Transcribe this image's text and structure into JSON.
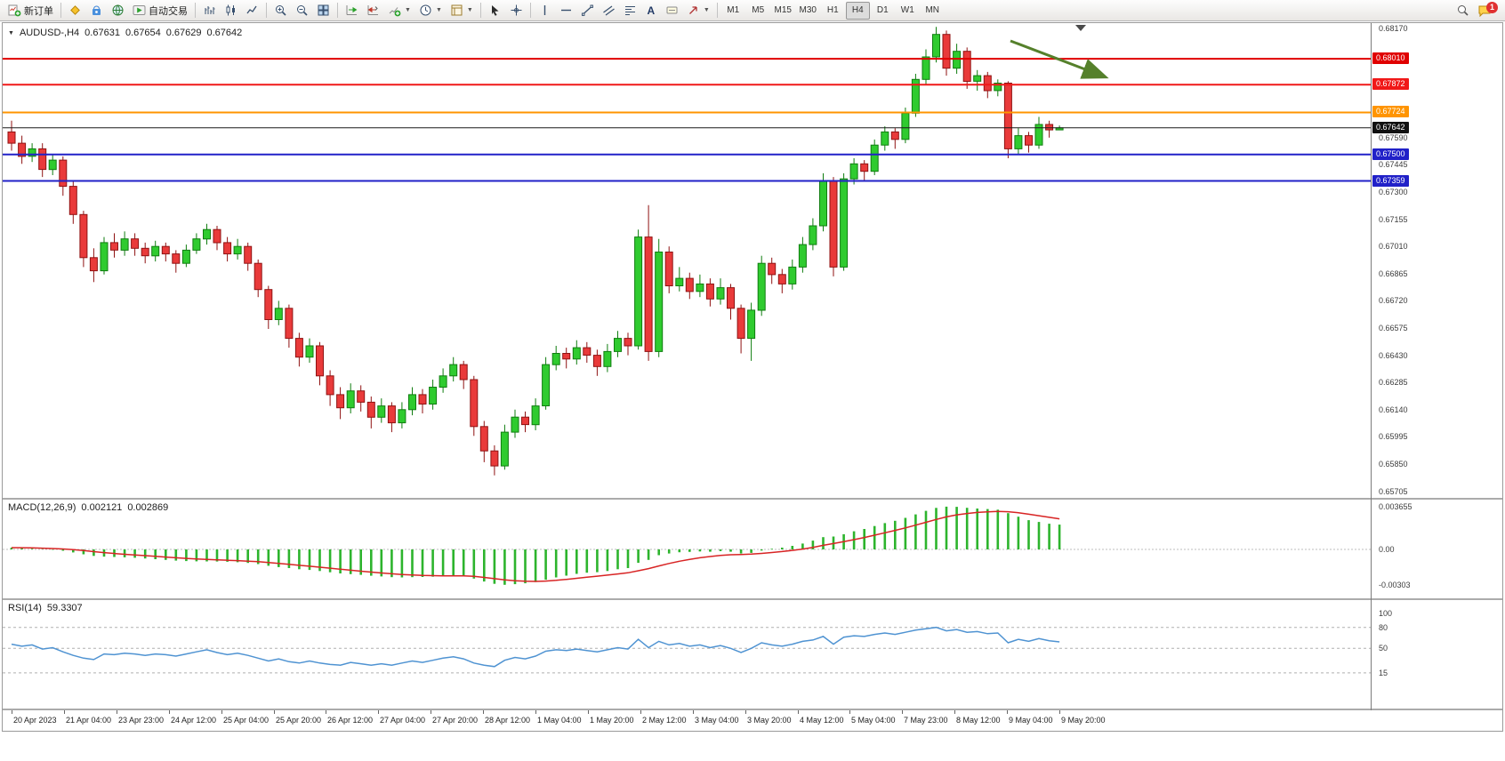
{
  "toolbar": {
    "new_order_label": "新订单",
    "autotrading_label": "自动交易",
    "text_tool_label": "A",
    "timeframes": [
      "M1",
      "M5",
      "M15",
      "M30",
      "H1",
      "H4",
      "D1",
      "W1",
      "MN"
    ],
    "active_timeframe": "H4",
    "notification_badge": "1"
  },
  "chart": {
    "symbol_period": "AUDUSD-,H4",
    "open": "0.67631",
    "high": "0.67654",
    "low": "0.67629",
    "close": "0.67642"
  },
  "indicators": {
    "macd": {
      "name": "MACD(12,26,9)",
      "main_value": "0.002121",
      "signal_value": "0.002869",
      "axis_max": "0.003655",
      "axis_zero": "0.00",
      "axis_min": "-0.00303"
    },
    "rsi": {
      "name": "RSI(14)",
      "value": "59.3307",
      "axis_labels": [
        "100",
        "80",
        "50",
        "15"
      ],
      "levels": [
        100,
        80,
        50,
        15
      ]
    }
  },
  "chart_data": {
    "type": "candlestick",
    "symbol": "AUDUSD-",
    "timeframe": "H4",
    "price_range": [
      0.6567,
      0.682
    ],
    "colors": {
      "up": "#2fcb2f",
      "up_border": "#0f7d0f",
      "down": "#e93a3a",
      "down_border": "#8f1212",
      "macd_hist": "#2db42d",
      "macd_signal": "#d82424",
      "rsi_line": "#4f93d2",
      "arrow": "#55802b",
      "current_price_line": "#1a1a1a"
    },
    "price_ticks": [
      "0.68170",
      "0.67590",
      "0.67445",
      "0.67300",
      "0.67155",
      "0.67010",
      "0.66865",
      "0.66720",
      "0.66575",
      "0.66430",
      "0.66285",
      "0.66140",
      "0.65995",
      "0.65850",
      "0.65705"
    ],
    "hlines": [
      {
        "label": "0.68010",
        "value": 0.6801,
        "color": "#e00000",
        "width": 2,
        "current": false
      },
      {
        "label": "0.67872",
        "value": 0.67872,
        "color": "#f01818",
        "width": 2,
        "current": false
      },
      {
        "label": "0.67724",
        "value": 0.67724,
        "color": "#ff9400",
        "width": 2,
        "current": false
      },
      {
        "label": "0.67642",
        "value": 0.67642,
        "color": "#1a1a1a",
        "width": 1,
        "current": true
      },
      {
        "label": "0.67500",
        "value": 0.675,
        "color": "#2121c8",
        "width": 2,
        "current": false
      },
      {
        "label": "0.67359",
        "value": 0.67359,
        "color": "#2121c8",
        "width": 2,
        "current": false
      }
    ],
    "candles": [
      [
        0.6762,
        0.6768,
        0.6752,
        0.6756
      ],
      [
        0.6756,
        0.676,
        0.6745,
        0.6749
      ],
      [
        0.6749,
        0.6756,
        0.6746,
        0.6753
      ],
      [
        0.6753,
        0.6756,
        0.6738,
        0.6742
      ],
      [
        0.6742,
        0.675,
        0.6739,
        0.6747
      ],
      [
        0.6747,
        0.6749,
        0.6728,
        0.6733
      ],
      [
        0.6733,
        0.6736,
        0.6713,
        0.6718
      ],
      [
        0.6718,
        0.672,
        0.669,
        0.6695
      ],
      [
        0.6695,
        0.67,
        0.6682,
        0.6688
      ],
      [
        0.6688,
        0.6706,
        0.6686,
        0.6703
      ],
      [
        0.6703,
        0.6708,
        0.6695,
        0.6699
      ],
      [
        0.6699,
        0.6709,
        0.6696,
        0.6705
      ],
      [
        0.6705,
        0.6708,
        0.6696,
        0.67
      ],
      [
        0.67,
        0.6703,
        0.6692,
        0.6696
      ],
      [
        0.6696,
        0.6704,
        0.6693,
        0.6701
      ],
      [
        0.6701,
        0.6703,
        0.6693,
        0.6697
      ],
      [
        0.6697,
        0.6699,
        0.6687,
        0.6692
      ],
      [
        0.6692,
        0.6702,
        0.669,
        0.6699
      ],
      [
        0.6699,
        0.6708,
        0.6697,
        0.6705
      ],
      [
        0.6705,
        0.6713,
        0.6702,
        0.671
      ],
      [
        0.671,
        0.6712,
        0.6699,
        0.6703
      ],
      [
        0.6703,
        0.6706,
        0.6693,
        0.6697
      ],
      [
        0.6697,
        0.6705,
        0.6694,
        0.6701
      ],
      [
        0.6701,
        0.6703,
        0.6688,
        0.6692
      ],
      [
        0.6692,
        0.6694,
        0.6674,
        0.6678
      ],
      [
        0.6678,
        0.668,
        0.6657,
        0.6662
      ],
      [
        0.6662,
        0.6672,
        0.6659,
        0.6668
      ],
      [
        0.6668,
        0.667,
        0.6647,
        0.6652
      ],
      [
        0.6652,
        0.6655,
        0.6637,
        0.6642
      ],
      [
        0.6642,
        0.6652,
        0.6639,
        0.6648
      ],
      [
        0.6648,
        0.665,
        0.6627,
        0.6632
      ],
      [
        0.6632,
        0.6635,
        0.6616,
        0.6622
      ],
      [
        0.6622,
        0.6626,
        0.6609,
        0.6615
      ],
      [
        0.6615,
        0.6628,
        0.6612,
        0.6624
      ],
      [
        0.6624,
        0.6627,
        0.6613,
        0.6618
      ],
      [
        0.6618,
        0.6621,
        0.6604,
        0.661
      ],
      [
        0.661,
        0.662,
        0.6607,
        0.6616
      ],
      [
        0.6616,
        0.6618,
        0.6602,
        0.6607
      ],
      [
        0.6607,
        0.6618,
        0.6604,
        0.6614
      ],
      [
        0.6614,
        0.6626,
        0.6611,
        0.6622
      ],
      [
        0.6622,
        0.6625,
        0.6612,
        0.6617
      ],
      [
        0.6617,
        0.663,
        0.6614,
        0.6626
      ],
      [
        0.6626,
        0.6636,
        0.6623,
        0.6632
      ],
      [
        0.6632,
        0.6642,
        0.6629,
        0.6638
      ],
      [
        0.6638,
        0.664,
        0.6625,
        0.663
      ],
      [
        0.663,
        0.6632,
        0.66,
        0.6605
      ],
      [
        0.6605,
        0.6608,
        0.6586,
        0.6592
      ],
      [
        0.6592,
        0.6595,
        0.6579,
        0.6584
      ],
      [
        0.6584,
        0.6606,
        0.6582,
        0.6602
      ],
      [
        0.6602,
        0.6614,
        0.6599,
        0.661
      ],
      [
        0.661,
        0.6613,
        0.6602,
        0.6606
      ],
      [
        0.6606,
        0.662,
        0.6603,
        0.6616
      ],
      [
        0.6616,
        0.6642,
        0.6614,
        0.6638
      ],
      [
        0.6638,
        0.6648,
        0.6635,
        0.6644
      ],
      [
        0.6644,
        0.6647,
        0.6636,
        0.6641
      ],
      [
        0.6641,
        0.6651,
        0.6638,
        0.6647
      ],
      [
        0.6647,
        0.665,
        0.6639,
        0.6643
      ],
      [
        0.6643,
        0.6646,
        0.6632,
        0.6637
      ],
      [
        0.6637,
        0.6649,
        0.6634,
        0.6645
      ],
      [
        0.6645,
        0.6656,
        0.6642,
        0.6652
      ],
      [
        0.6652,
        0.6655,
        0.6643,
        0.6648
      ],
      [
        0.6648,
        0.671,
        0.6646,
        0.6706
      ],
      [
        0.6706,
        0.6723,
        0.664,
        0.6645
      ],
      [
        0.6645,
        0.6705,
        0.6642,
        0.6698
      ],
      [
        0.6698,
        0.6701,
        0.6676,
        0.668
      ],
      [
        0.668,
        0.669,
        0.6677,
        0.6684
      ],
      [
        0.6684,
        0.6687,
        0.6673,
        0.6677
      ],
      [
        0.6677,
        0.6686,
        0.6674,
        0.6681
      ],
      [
        0.6681,
        0.6684,
        0.6669,
        0.6673
      ],
      [
        0.6673,
        0.6684,
        0.667,
        0.6679
      ],
      [
        0.6679,
        0.6681,
        0.6662,
        0.6668
      ],
      [
        0.6668,
        0.667,
        0.6644,
        0.6652
      ],
      [
        0.6652,
        0.6671,
        0.664,
        0.6667
      ],
      [
        0.6667,
        0.6696,
        0.6664,
        0.6692
      ],
      [
        0.6692,
        0.6695,
        0.6681,
        0.6686
      ],
      [
        0.6686,
        0.6689,
        0.6676,
        0.6681
      ],
      [
        0.6681,
        0.6694,
        0.6678,
        0.669
      ],
      [
        0.669,
        0.6706,
        0.6687,
        0.6702
      ],
      [
        0.6702,
        0.6716,
        0.6699,
        0.6712
      ],
      [
        0.6712,
        0.674,
        0.6709,
        0.6736
      ],
      [
        0.6736,
        0.6738,
        0.6685,
        0.669
      ],
      [
        0.669,
        0.674,
        0.6688,
        0.6737
      ],
      [
        0.6737,
        0.6748,
        0.6734,
        0.6745
      ],
      [
        0.6745,
        0.6747,
        0.6736,
        0.6741
      ],
      [
        0.6741,
        0.6758,
        0.6739,
        0.6755
      ],
      [
        0.6755,
        0.6765,
        0.6752,
        0.6762
      ],
      [
        0.6762,
        0.6764,
        0.6753,
        0.6758
      ],
      [
        0.6758,
        0.6775,
        0.6756,
        0.6772
      ],
      [
        0.6772,
        0.6793,
        0.677,
        0.679
      ],
      [
        0.679,
        0.6806,
        0.6787,
        0.6802
      ],
      [
        0.6802,
        0.6818,
        0.6799,
        0.6814
      ],
      [
        0.6814,
        0.6816,
        0.6792,
        0.6796
      ],
      [
        0.6796,
        0.6809,
        0.6793,
        0.6805
      ],
      [
        0.6805,
        0.6807,
        0.6785,
        0.6789
      ],
      [
        0.6789,
        0.6795,
        0.6784,
        0.6792
      ],
      [
        0.6792,
        0.6794,
        0.678,
        0.6784
      ],
      [
        0.6784,
        0.679,
        0.6781,
        0.6788
      ],
      [
        0.6788,
        0.6789,
        0.6748,
        0.6753
      ],
      [
        0.6753,
        0.6764,
        0.675,
        0.676
      ],
      [
        0.676,
        0.6762,
        0.6751,
        0.6755
      ],
      [
        0.6755,
        0.677,
        0.6753,
        0.6766
      ],
      [
        0.6766,
        0.6768,
        0.6759,
        0.67631
      ],
      [
        0.67631,
        0.67654,
        0.67629,
        0.67642
      ]
    ],
    "macd_hist": [
      0.00015,
      0.0001,
      6e-05,
      2e-05,
      -3e-05,
      -0.00012,
      -0.00026,
      -0.00042,
      -0.00056,
      -0.00062,
      -0.00065,
      -0.00068,
      -0.00072,
      -0.00078,
      -0.00084,
      -0.0009,
      -0.00096,
      -0.001,
      -0.00102,
      -0.00103,
      -0.00104,
      -0.00106,
      -0.0011,
      -0.00116,
      -0.00126,
      -0.0014,
      -0.00152,
      -0.0016,
      -0.0017,
      -0.00176,
      -0.00185,
      -0.00196,
      -0.00206,
      -0.00212,
      -0.00218,
      -0.00226,
      -0.00232,
      -0.00238,
      -0.0024,
      -0.00238,
      -0.00236,
      -0.00234,
      -0.0023,
      -0.00226,
      -0.00228,
      -0.0025,
      -0.00275,
      -0.00295,
      -0.00303,
      -0.00298,
      -0.0029,
      -0.0028,
      -0.0026,
      -0.0024,
      -0.00225,
      -0.0021,
      -0.002,
      -0.00195,
      -0.00185,
      -0.0017,
      -0.0016,
      -0.00115,
      -0.0009,
      -0.0005,
      -0.00035,
      -0.00025,
      -0.00022,
      -0.00018,
      -0.0002,
      -0.00015,
      -0.0002,
      -0.00035,
      -0.0003,
      -0.0001,
      5e-05,
      0.00015,
      0.0003,
      0.0005,
      0.00075,
      0.00105,
      0.0011,
      0.0013,
      0.00155,
      0.00175,
      0.002,
      0.00225,
      0.00245,
      0.0027,
      0.003,
      0.0033,
      0.00355,
      0.003655,
      0.00364,
      0.00356,
      0.0035,
      0.00345,
      0.0034,
      0.0031,
      0.0028,
      0.0025,
      0.00235,
      0.0022,
      0.002121
    ],
    "rsi": [
      56,
      53,
      55,
      49,
      51,
      45,
      40,
      36,
      34,
      42,
      41,
      43,
      42,
      40,
      42,
      41,
      39,
      42,
      45,
      48,
      44,
      41,
      43,
      40,
      36,
      32,
      35,
      31,
      29,
      32,
      29,
      27,
      26,
      30,
      28,
      26,
      28,
      26,
      29,
      32,
      30,
      33,
      36,
      38,
      35,
      29,
      26,
      24,
      33,
      37,
      35,
      39,
      46,
      48,
      47,
      49,
      47,
      45,
      48,
      51,
      49,
      63,
      51,
      60,
      55,
      57,
      53,
      55,
      51,
      54,
      50,
      44,
      50,
      58,
      55,
      53,
      56,
      60,
      62,
      67,
      56,
      66,
      68,
      67,
      70,
      72,
      70,
      73,
      76,
      78,
      80,
      75,
      77,
      73,
      74,
      71,
      72,
      58,
      63,
      60,
      64,
      61,
      59.33
    ],
    "time_labels": [
      "20 Apr 2023",
      "21 Apr 04:00",
      "23 Apr 23:00",
      "24 Apr 12:00",
      "25 Apr 04:00",
      "25 Apr 20:00",
      "26 Apr 12:00",
      "27 Apr 04:00",
      "27 Apr 20:00",
      "28 Apr 12:00",
      "1 May 04:00",
      "1 May 20:00",
      "2 May 12:00",
      "3 May 04:00",
      "3 May 20:00",
      "4 May 12:00",
      "5 May 04:00",
      "7 May 23:00",
      "8 May 12:00",
      "9 May 04:00",
      "9 May 20:00"
    ]
  }
}
